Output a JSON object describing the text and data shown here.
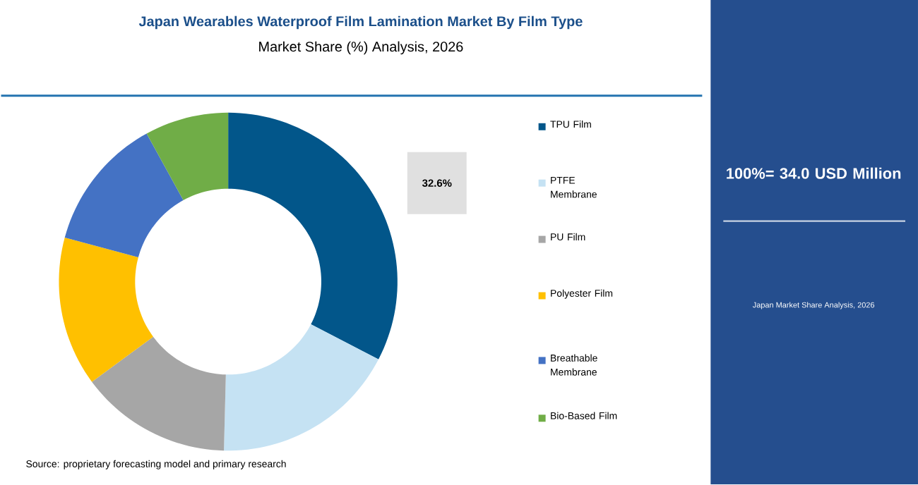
{
  "chart_data": {
    "type": "donut",
    "title": "Japan Wearables Waterproof Film Lamination Market By Film Type",
    "subtitle": "Market Share (%) Analysis, 2026",
    "categories": [
      "TPU Film",
      "PTFE Membrane",
      "PU Film",
      "Polyester Film",
      "Breathable Membrane",
      "Bio-Based Film"
    ],
    "values": [
      32.6,
      17.8,
      14.5,
      14.3,
      12.8,
      8.0
    ],
    "colors": [
      "#02568a",
      "#c5e2f3",
      "#a6a6a6",
      "#ffc000",
      "#4472c4",
      "#70ad47"
    ],
    "value_labels": [
      "32.6%",
      null,
      null,
      null,
      null,
      null
    ],
    "legend": "right",
    "annotations": [
      "100%= 34.0 USD Million",
      "Japan Market Share Analysis, 2026",
      "Source: proprietary forecasting model and primary research"
    ]
  }
}
